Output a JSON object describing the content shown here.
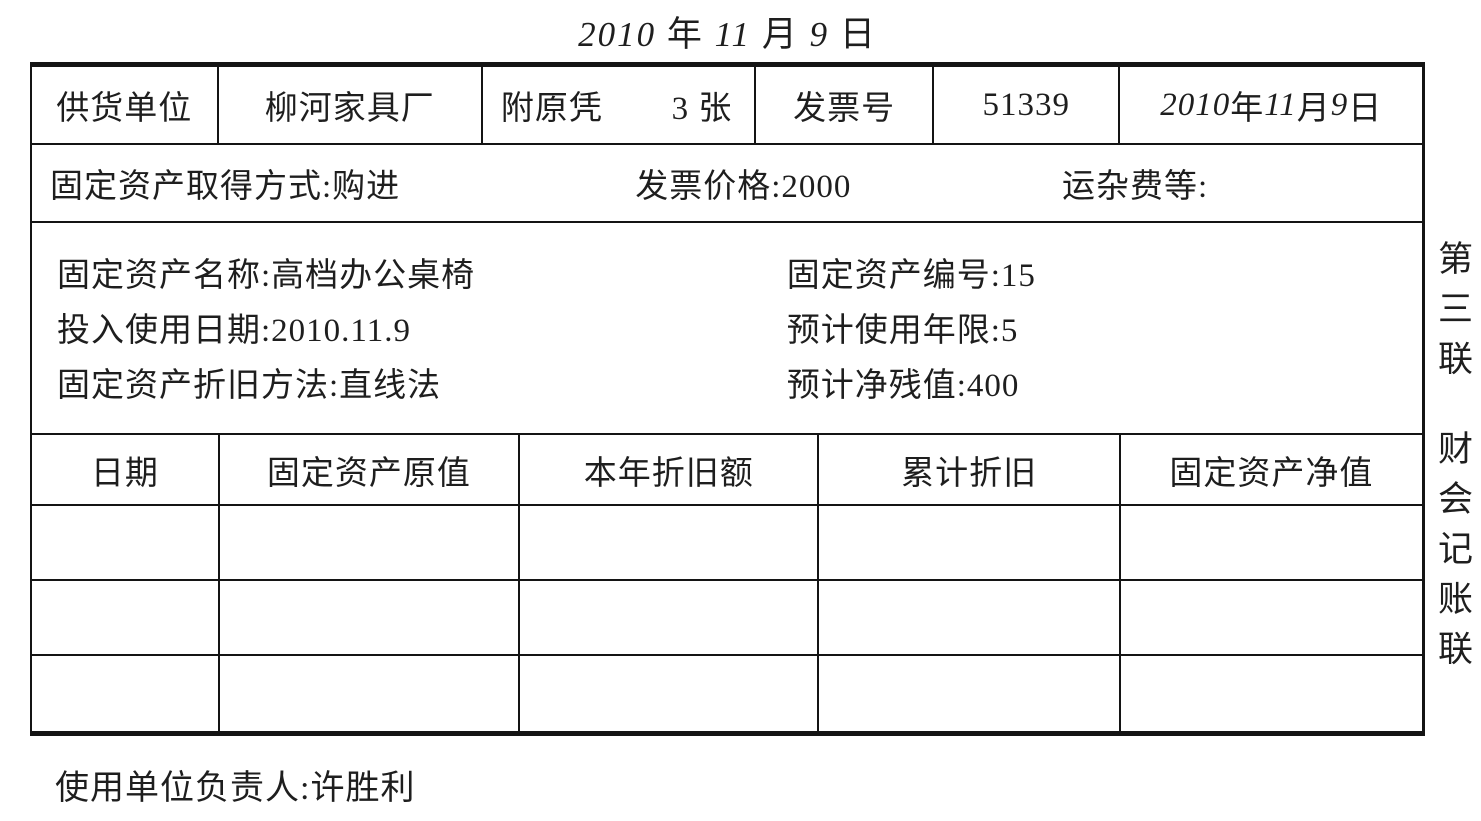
{
  "title": {
    "parts": [
      {
        "text": "2010",
        "italic": true
      },
      {
        "text": " 年 "
      },
      {
        "text": "11",
        "italic": true
      },
      {
        "text": " 月 "
      },
      {
        "text": "9",
        "italic": true
      },
      {
        "text": " 日"
      }
    ]
  },
  "info_row": {
    "supplier_label": "供货单位",
    "supplier_value": "柳河家具厂",
    "voucher_label": "附原凭",
    "voucher_count": "3 张",
    "invoice_label": "发票号",
    "invoice_number": "51339",
    "date_parts": [
      {
        "text": "2010",
        "italic": true
      },
      {
        "text": " 年 "
      },
      {
        "text": "11",
        "italic": true
      },
      {
        "text": " 月 "
      },
      {
        "text": "9",
        "italic": true
      },
      {
        "text": " 日"
      }
    ]
  },
  "acquisition_row": {
    "method": "固定资产取得方式:购进",
    "invoice_price": "发票价格:2000",
    "freight": "运杂费等:"
  },
  "asset_details": {
    "left": [
      "固定资产名称:高档办公桌椅",
      "投入使用日期:2010.11.9",
      "固定资产折旧方法:直线法"
    ],
    "right": [
      "固定资产编号:15",
      "预计使用年限:5",
      "预计净残值:400"
    ]
  },
  "depreciation_table": {
    "headers": [
      "日期",
      "固定资产原值",
      "本年折旧额",
      "累计折旧",
      "固定资产净值"
    ],
    "rows": [
      [
        "",
        "",
        "",
        "",
        ""
      ],
      [
        "",
        "",
        "",
        "",
        ""
      ],
      [
        "",
        "",
        "",
        "",
        ""
      ]
    ]
  },
  "stub": {
    "copy_number": "第三联",
    "copy_name": "财会记账联"
  },
  "footer": {
    "signature": "使用单位负责人:许胜利"
  },
  "colors": {
    "ink": "#1e1e1e",
    "border": "#141414",
    "background": "#ffffff"
  }
}
